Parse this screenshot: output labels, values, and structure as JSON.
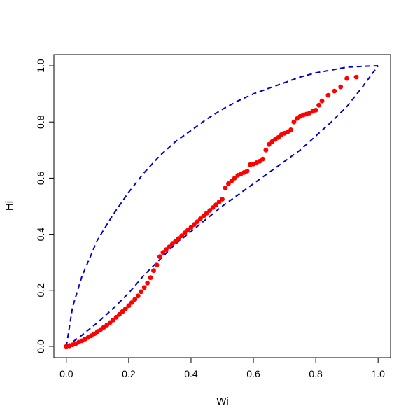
{
  "chart_data": {
    "type": "scatter",
    "title": "",
    "xlabel": "Wi",
    "ylabel": "Hi",
    "xlim": [
      -0.04,
      1.04
    ],
    "ylim": [
      -0.04,
      1.04
    ],
    "xticks": [
      "0.0",
      "0.2",
      "0.4",
      "0.6",
      "0.8",
      "1.0"
    ],
    "yticks": [
      "0.0",
      "0.2",
      "0.4",
      "0.6",
      "0.8",
      "1.0"
    ],
    "grid": false,
    "legend": "none",
    "colors": {
      "points": "#ff0000",
      "bounds": "#0000cc"
    },
    "points": {
      "x": [
        0.0,
        0.01,
        0.02,
        0.03,
        0.04,
        0.05,
        0.06,
        0.07,
        0.08,
        0.09,
        0.1,
        0.11,
        0.12,
        0.13,
        0.14,
        0.15,
        0.16,
        0.17,
        0.18,
        0.19,
        0.2,
        0.21,
        0.22,
        0.23,
        0.24,
        0.25,
        0.26,
        0.27,
        0.28,
        0.29,
        0.3,
        0.31,
        0.32,
        0.33,
        0.34,
        0.35,
        0.36,
        0.37,
        0.38,
        0.39,
        0.4,
        0.41,
        0.42,
        0.43,
        0.44,
        0.45,
        0.46,
        0.47,
        0.48,
        0.49,
        0.5,
        0.51,
        0.52,
        0.53,
        0.54,
        0.55,
        0.56,
        0.57,
        0.58,
        0.59,
        0.6,
        0.61,
        0.62,
        0.63,
        0.64,
        0.65,
        0.66,
        0.67,
        0.68,
        0.69,
        0.7,
        0.71,
        0.72,
        0.73,
        0.74,
        0.75,
        0.76,
        0.77,
        0.78,
        0.79,
        0.8,
        0.81,
        0.82,
        0.84,
        0.86,
        0.88,
        0.9,
        0.93
      ],
      "y": [
        0.0,
        0.002,
        0.006,
        0.01,
        0.015,
        0.02,
        0.026,
        0.032,
        0.038,
        0.045,
        0.053,
        0.06,
        0.068,
        0.076,
        0.085,
        0.094,
        0.104,
        0.114,
        0.124,
        0.134,
        0.145,
        0.156,
        0.168,
        0.18,
        0.195,
        0.21,
        0.226,
        0.245,
        0.27,
        0.29,
        0.32,
        0.335,
        0.345,
        0.355,
        0.365,
        0.375,
        0.385,
        0.395,
        0.405,
        0.415,
        0.425,
        0.435,
        0.445,
        0.455,
        0.465,
        0.475,
        0.485,
        0.495,
        0.505,
        0.515,
        0.525,
        0.565,
        0.58,
        0.59,
        0.6,
        0.61,
        0.615,
        0.62,
        0.625,
        0.648,
        0.65,
        0.655,
        0.66,
        0.668,
        0.7,
        0.72,
        0.73,
        0.738,
        0.745,
        0.755,
        0.76,
        0.765,
        0.772,
        0.8,
        0.812,
        0.82,
        0.825,
        0.828,
        0.832,
        0.838,
        0.842,
        0.86,
        0.875,
        0.895,
        0.91,
        0.925,
        0.955,
        0.96
      ]
    },
    "upper_bound": {
      "x": [
        0.0,
        0.02,
        0.05,
        0.1,
        0.15,
        0.2,
        0.25,
        0.3,
        0.35,
        0.4,
        0.45,
        0.5,
        0.55,
        0.6,
        0.65,
        0.7,
        0.75,
        0.8,
        0.85,
        0.9,
        0.95,
        1.0
      ],
      "y": [
        0.0,
        0.14,
        0.25,
        0.38,
        0.47,
        0.55,
        0.62,
        0.68,
        0.73,
        0.77,
        0.81,
        0.845,
        0.875,
        0.9,
        0.92,
        0.94,
        0.96,
        0.975,
        0.985,
        0.995,
        0.998,
        1.0
      ]
    },
    "lower_bound": {
      "x": [
        0.0,
        0.05,
        0.1,
        0.15,
        0.2,
        0.25,
        0.3,
        0.35,
        0.4,
        0.45,
        0.5,
        0.55,
        0.6,
        0.65,
        0.7,
        0.75,
        0.8,
        0.85,
        0.9,
        0.95,
        1.0
      ],
      "y": [
        0.0,
        0.04,
        0.085,
        0.135,
        0.19,
        0.255,
        0.31,
        0.365,
        0.41,
        0.455,
        0.5,
        0.54,
        0.58,
        0.62,
        0.66,
        0.7,
        0.75,
        0.8,
        0.855,
        0.925,
        1.0
      ]
    }
  }
}
